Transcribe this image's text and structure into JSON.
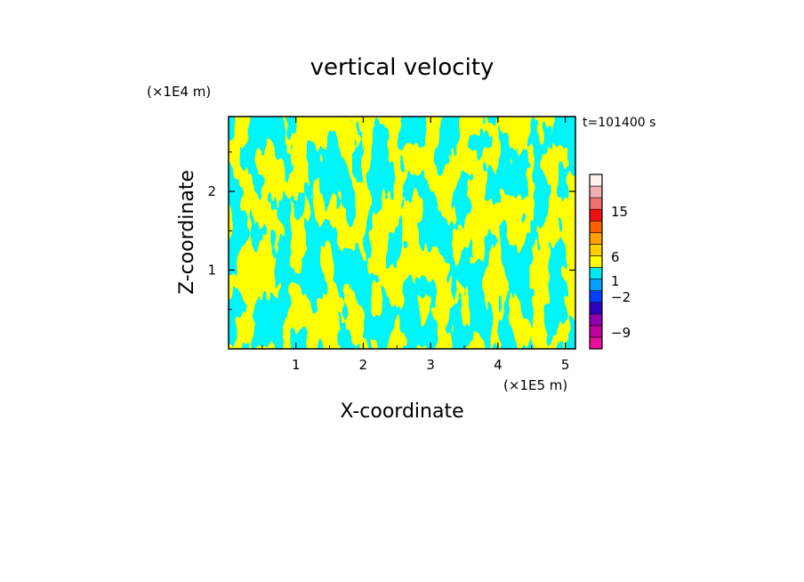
{
  "chart_data": {
    "type": "heatmap",
    "title": "vertical velocity",
    "xlabel": "X-coordinate",
    "ylabel": "Z-coordinate",
    "x_unit": "(×1E5 m)",
    "y_unit": "(×1E4 m)",
    "time_label": "t=101400 s",
    "xlim": [
      0,
      5.15
    ],
    "ylim": [
      0,
      2.95
    ],
    "x_ticks": [
      1,
      2,
      3,
      4,
      5
    ],
    "y_ticks": [
      1,
      2
    ],
    "field_colors": {
      "positive_low": "#ffff00",
      "negative_low": "#00e8f0"
    },
    "colorbar": {
      "bins": [
        {
          "color": "#e8109c"
        },
        {
          "color": "#c0009c"
        },
        {
          "color": "#9000b0"
        },
        {
          "color": "#3000c0"
        },
        {
          "color": "#0040ff"
        },
        {
          "color": "#00a0ff"
        },
        {
          "color": "#00e8f0"
        },
        {
          "color": "#ffff00"
        },
        {
          "color": "#ffd000"
        },
        {
          "color": "#ffa000"
        },
        {
          "color": "#ff6000"
        },
        {
          "color": "#f01010"
        },
        {
          "color": "#f07070"
        },
        {
          "color": "#f0b0b0"
        },
        {
          "color": "#fff0f0"
        }
      ],
      "labels": [
        "15",
        "6",
        "1",
        "−2",
        "−9"
      ]
    }
  }
}
